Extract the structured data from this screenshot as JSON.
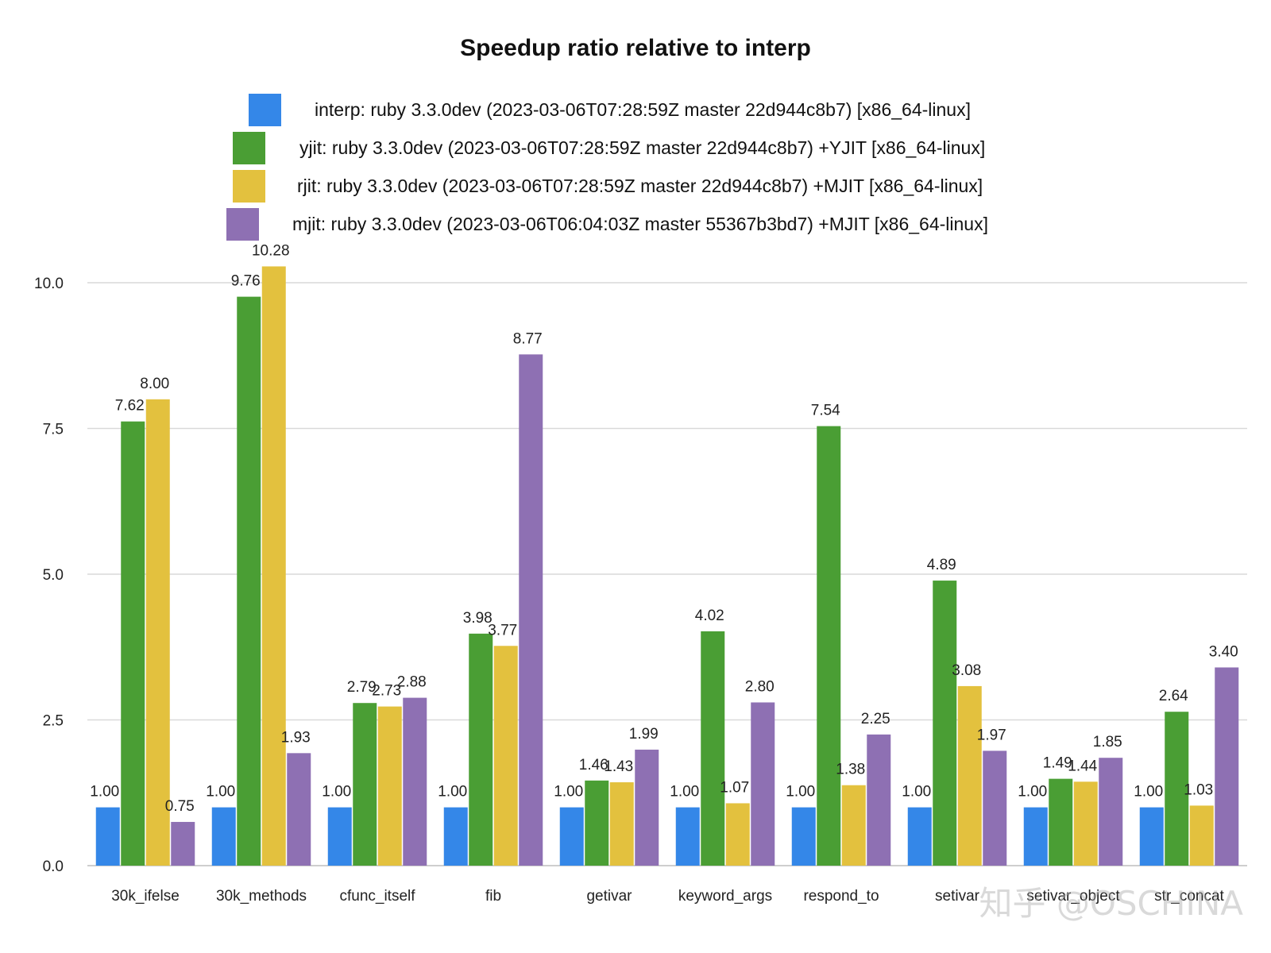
{
  "chart_data": {
    "type": "bar",
    "title": "Speedup ratio relative to interp",
    "xlabel": "",
    "ylabel": "",
    "ylim": [
      0,
      10.0
    ],
    "yticks": [
      "0.0",
      "2.5",
      "5.0",
      "7.5",
      "10.0"
    ],
    "grid": true,
    "legend_position": "top",
    "categories": [
      "30k_ifelse",
      "30k_methods",
      "cfunc_itself",
      "fib",
      "getivar",
      "keyword_args",
      "respond_to",
      "setivar",
      "setivar_object",
      "str_concat"
    ],
    "series": [
      {
        "name": "interp: ruby 3.3.0dev (2023-03-06T07:28:59Z master 22d944c8b7) [x86_64-linux]",
        "color": "#3487e8",
        "values": [
          1.0,
          1.0,
          1.0,
          1.0,
          1.0,
          1.0,
          1.0,
          1.0,
          1.0,
          1.0
        ],
        "labels": [
          "1.00",
          "1.00",
          "1.00",
          "1.00",
          "1.00",
          "1.00",
          "1.00",
          "1.00",
          "1.00",
          "1.00"
        ]
      },
      {
        "name": "yjit: ruby 3.3.0dev (2023-03-06T07:28:59Z master 22d944c8b7) +YJIT [x86_64-linux]",
        "color": "#4a9e34",
        "values": [
          7.62,
          9.76,
          2.79,
          3.98,
          1.46,
          4.02,
          7.54,
          4.89,
          1.49,
          2.64
        ],
        "labels": [
          "7.62",
          "9.76",
          "2.79",
          "3.98",
          "1.46",
          "4.02",
          "7.54",
          "4.89",
          "1.49",
          "2.64"
        ]
      },
      {
        "name": "rjit: ruby 3.3.0dev (2023-03-06T07:28:59Z master 22d944c8b7) +MJIT [x86_64-linux]",
        "color": "#e3c13e",
        "values": [
          8.0,
          10.28,
          2.73,
          3.77,
          1.43,
          1.07,
          1.38,
          3.08,
          1.44,
          1.03
        ],
        "labels": [
          "8.00",
          "10.28",
          "2.73",
          "3.77",
          "1.43",
          "1.07",
          "1.38",
          "3.08",
          "1.44",
          "1.03"
        ]
      },
      {
        "name": "mjit: ruby 3.3.0dev (2023-03-06T06:04:03Z master 55367b3bd7) +MJIT [x86_64-linux]",
        "color": "#8e70b3",
        "values": [
          0.75,
          1.93,
          2.88,
          8.77,
          1.99,
          2.8,
          2.25,
          1.97,
          1.85,
          3.4
        ],
        "labels": [
          "0.75",
          "1.93",
          "2.88",
          "8.77",
          "1.99",
          "2.80",
          "2.25",
          "1.97",
          "1.85",
          "3.40"
        ]
      }
    ]
  },
  "watermark": "知乎 @OSCHINA"
}
